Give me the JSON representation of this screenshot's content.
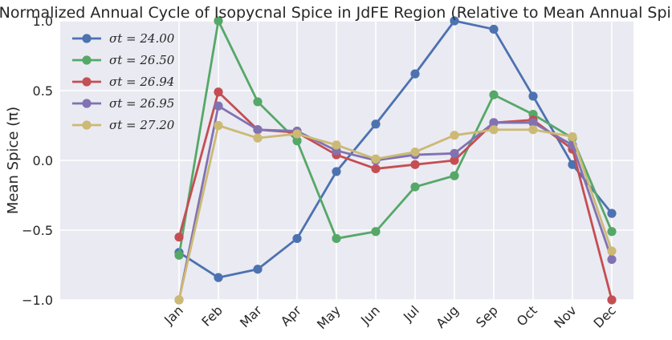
{
  "chart_data": {
    "type": "line",
    "title": "Normalized Annual Cycle of Isopycnal Spice in JdFE Region (Relative to Mean Annual Spice)",
    "xlabel": "",
    "ylabel": "Mean Spice (π)",
    "categories": [
      "Jan",
      "Feb",
      "Mar",
      "Apr",
      "May",
      "Jun",
      "Jul",
      "Aug",
      "Sep",
      "Oct",
      "Nov",
      "Dec"
    ],
    "ylim": [
      -1.0,
      1.0
    ],
    "yticks": [
      "−1.0",
      "−0.5",
      "0.0",
      "0.5",
      "1.0"
    ],
    "grid": true,
    "legend_position": "top-left",
    "series": [
      {
        "name": "σt = 24.00",
        "color": "#4c72b0",
        "values": [
          -0.66,
          -0.84,
          -0.78,
          -0.56,
          -0.08,
          0.26,
          0.62,
          1.0,
          0.94,
          0.46,
          -0.03,
          -0.38
        ]
      },
      {
        "name": "σt = 26.50",
        "color": "#55a868",
        "values": [
          -0.68,
          1.0,
          0.42,
          0.14,
          -0.56,
          -0.51,
          -0.19,
          -0.11,
          0.47,
          0.33,
          0.16,
          -0.51
        ]
      },
      {
        "name": "σt = 26.94",
        "color": "#c44e52",
        "values": [
          -0.55,
          0.49,
          0.22,
          0.2,
          0.04,
          -0.06,
          -0.03,
          0.0,
          0.27,
          0.29,
          0.08,
          -1.0
        ]
      },
      {
        "name": "σt = 26.95",
        "color": "#8172b2",
        "values": [
          -1.0,
          0.39,
          0.22,
          0.21,
          0.07,
          0.0,
          0.04,
          0.05,
          0.27,
          0.27,
          0.11,
          -0.71
        ]
      },
      {
        "name": "σt = 27.20",
        "color": "#ccb974",
        "values": [
          -1.0,
          0.25,
          0.16,
          0.19,
          0.11,
          0.01,
          0.06,
          0.18,
          0.22,
          0.22,
          0.17,
          -0.65
        ]
      }
    ]
  }
}
